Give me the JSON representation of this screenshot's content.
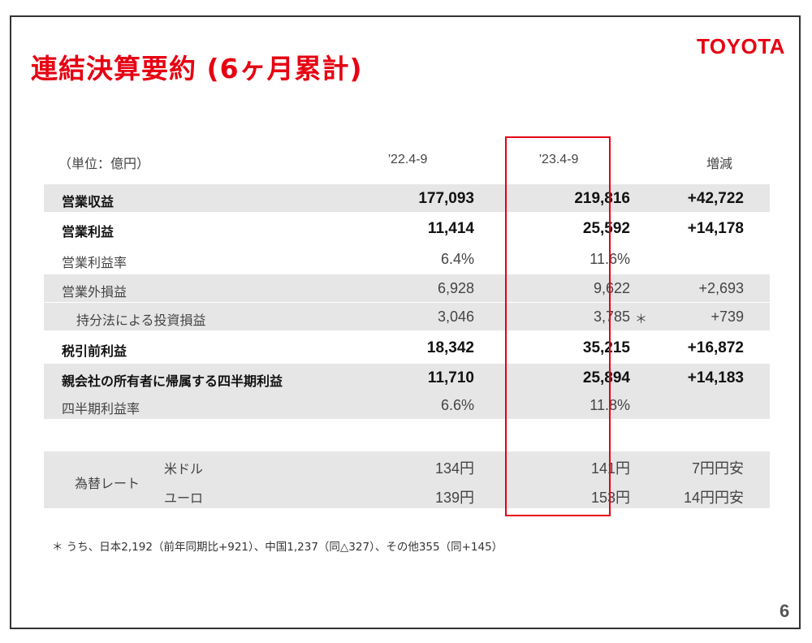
{
  "title": "連結決算要約 (6ヶ月累計)",
  "logo_text": "TOYOTA",
  "headers": {
    "unit": "（単位：億円）",
    "col1": "'22.4-9",
    "col2": "'23.4-9",
    "col3": "増減"
  },
  "rows": [
    {
      "label": "営業収益",
      "v1": "177,093",
      "v2": "219,816",
      "v3": "+42,722"
    },
    {
      "label": "営業利益",
      "v1": "11,414",
      "v2": "25,592",
      "v3": "+14,178"
    },
    {
      "label": "営業利益率",
      "v1": "6.4%",
      "v2": "11.6%",
      "v3": ""
    },
    {
      "label": "営業外損益",
      "v1": "6,928",
      "v2": "9,622",
      "v3": "+2,693"
    },
    {
      "label": "持分法による投資損益",
      "v1": "3,046",
      "v2": "3,785",
      "v3": "+739",
      "note": "＊"
    },
    {
      "label": "税引前利益",
      "v1": "18,342",
      "v2": "35,215",
      "v3": "+16,872"
    },
    {
      "label": "親会社の所有者に帰属する四半期利益",
      "v1": "11,710",
      "v2": "25,894",
      "v3": "+14,183"
    },
    {
      "label": "四半期利益率",
      "v1": "6.6%",
      "v2": "11.8%",
      "v3": ""
    }
  ],
  "fx": {
    "label": "為替レート",
    "usd": {
      "label": "米ドル",
      "v1": "134円",
      "v2": "141円",
      "v3": "7円円安"
    },
    "eur": {
      "label": "ユーロ",
      "v1": "139円",
      "v2": "153円",
      "v3": "14円円安"
    }
  },
  "footnote": "＊ うち、日本2,192（前年同期比+921）、中国1,237（同△327）、その他355（同+145）",
  "page_number": "6",
  "colors": {
    "brand_red": "#e60012",
    "row_shade": "#e6e6e6"
  }
}
